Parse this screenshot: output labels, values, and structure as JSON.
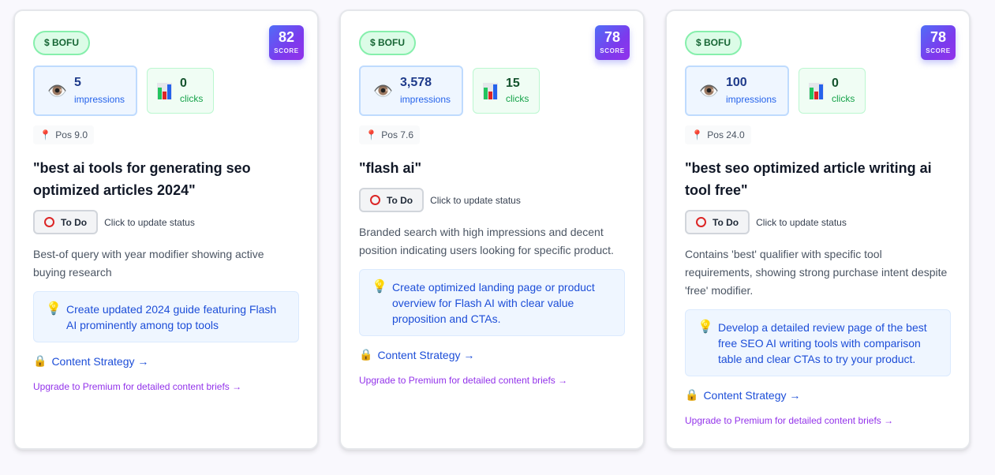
{
  "colors": {
    "page_bg": "#f9f8fd",
    "bofu_bg": "#dcfce7",
    "bofu_text": "#166534",
    "score_gradient_start": "#4f6ef7",
    "score_gradient_end": "#9333ea",
    "impressions_bg": "#eff6ff",
    "clicks_bg": "#f0fdf4",
    "tip_bg": "#eff6ff",
    "link_blue": "#1d4ed8",
    "upgrade_purple": "#9333ea",
    "todo_ring": "#dc2626"
  },
  "icons": {
    "impressions": "👁️",
    "clicks": "bar-chart-icon",
    "position": "📍",
    "tip": "💡",
    "lock": "🔒",
    "todo": "⭕"
  },
  "cards": [
    {
      "stage_badge": "$ BOFU",
      "score": "82",
      "score_label": "SCORE",
      "impressions_value": "5",
      "impressions_label": "impressions",
      "clicks_value": "0",
      "clicks_label": "clicks",
      "position": "Pos 9.0",
      "query": "\"best ai tools for generating seo optimized articles 2024\"",
      "status_button": "To Do",
      "status_hint": "Click to update status",
      "description": "Best-of query with year modifier showing active buying research",
      "tip": "Create updated 2024 guide featuring Flash AI prominently among top tools",
      "strategy_link": "Content Strategy →",
      "upgrade_link": "Upgrade to Premium for detailed content briefs →"
    },
    {
      "stage_badge": "$ BOFU",
      "score": "78",
      "score_label": "SCORE",
      "impressions_value": "3,578",
      "impressions_label": "impressions",
      "clicks_value": "15",
      "clicks_label": "clicks",
      "position": "Pos 7.6",
      "query": "\"flash ai\"",
      "status_button": "To Do",
      "status_hint": "Click to update status",
      "description": "Branded search with high impressions and decent position indicating users looking for specific product.",
      "tip": "Create optimized landing page or product overview for Flash AI with clear value proposition and CTAs.",
      "strategy_link": "Content Strategy →",
      "upgrade_link": "Upgrade to Premium for detailed content briefs →"
    },
    {
      "stage_badge": "$ BOFU",
      "score": "78",
      "score_label": "SCORE",
      "impressions_value": "100",
      "impressions_label": "impressions",
      "clicks_value": "0",
      "clicks_label": "clicks",
      "position": "Pos 24.0",
      "query": "\"best seo optimized article writing ai tool free\"",
      "status_button": "To Do",
      "status_hint": "Click to update status",
      "description": "Contains 'best' qualifier with specific tool requirements, showing strong purchase intent despite 'free' modifier.",
      "tip": "Develop a detailed review page of the best free SEO AI writing tools with comparison table and clear CTAs to try your product.",
      "strategy_link": "Content Strategy →",
      "upgrade_link": "Upgrade to Premium for detailed content briefs →"
    }
  ]
}
